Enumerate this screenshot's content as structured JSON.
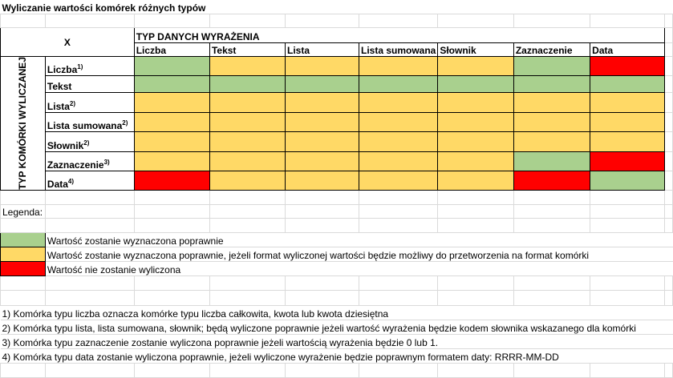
{
  "title": "Wyliczanie wartości komórek różnych typów",
  "corner_label": "X",
  "column_group_label": "TYP DANYCH WYRAŻENIA",
  "row_group_label": "TYP KOMÓRKI WYLICZANEJ",
  "colors": {
    "G": "#a9d08e",
    "Y": "#ffd966",
    "R": "#ff0000"
  },
  "columns": [
    "Liczba",
    "Tekst",
    "Lista",
    "Lista sumowana",
    "Słownik",
    "Zaznaczenie",
    "Data"
  ],
  "rows": [
    {
      "label": "Liczba",
      "sup": "1)",
      "cells": [
        "G",
        "Y",
        "Y",
        "Y",
        "Y",
        "G",
        "R"
      ]
    },
    {
      "label": "Tekst",
      "sup": "",
      "cells": [
        "G",
        "G",
        "G",
        "G",
        "G",
        "G",
        "G"
      ]
    },
    {
      "label": "Lista",
      "sup": "2)",
      "cells": [
        "Y",
        "Y",
        "Y",
        "Y",
        "Y",
        "Y",
        "Y"
      ]
    },
    {
      "label": "Lista sumowana",
      "sup": "2)",
      "cells": [
        "Y",
        "Y",
        "Y",
        "Y",
        "Y",
        "Y",
        "Y"
      ]
    },
    {
      "label": "Słownik",
      "sup": "2)",
      "cells": [
        "Y",
        "Y",
        "Y",
        "Y",
        "Y",
        "Y",
        "Y"
      ]
    },
    {
      "label": "Zaznaczenie",
      "sup": "3)",
      "cells": [
        "Y",
        "Y",
        "Y",
        "Y",
        "Y",
        "G",
        "R"
      ]
    },
    {
      "label": "Data",
      "sup": "4)",
      "cells": [
        "R",
        "Y",
        "Y",
        "Y",
        "Y",
        "R",
        "G"
      ]
    }
  ],
  "legend": {
    "title": "Legenda:",
    "items": [
      {
        "color": "G",
        "text": "Wartość zostanie wyznaczona poprawnie"
      },
      {
        "color": "Y",
        "text": "Wartość zostanie wyznaczona poprawnie, jeżeli format wyliczonej wartości będzie możliwy do przetworzenia na format komórki"
      },
      {
        "color": "R",
        "text": "Wartość nie zostanie wyliczona"
      }
    ]
  },
  "notes": [
    "1) Komórka typu liczba oznacza komórke typu liczba całkowita, kwota lub kwota dziesiętna",
    "2) Komórka typu lista, lista sumowana, słownik; będą wyliczone poprawnie jeżeli wartość wyrażenia będzie kodem słownika wskazanego dla komórki",
    "3) Komórka typu zaznaczenie zostanie wyliczona poprawnie jeżeli wartością wyrażenia będzie 0 lub 1.",
    "4) Komórka typu data zostanie wyliczona poprawnie, jeżeli wyliczone wyrażenie będzie poprawnym formatem daty: RRRR-MM-DD"
  ]
}
